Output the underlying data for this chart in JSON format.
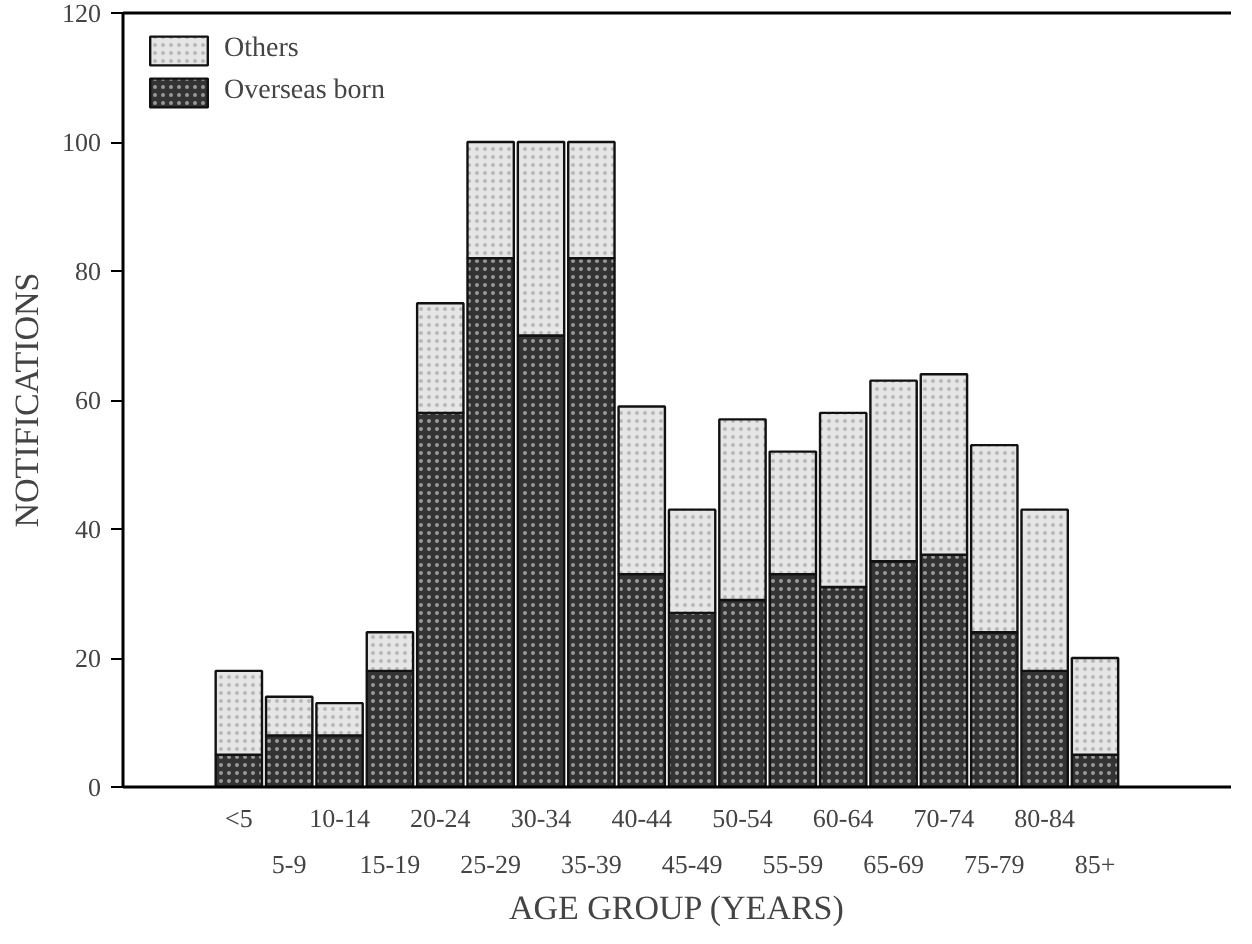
{
  "chart_data": {
    "type": "bar",
    "stacked": true,
    "xlabel": "AGE GROUP (YEARS)",
    "ylabel": "NOTIFICATIONS",
    "categories": [
      "<5",
      "5-9",
      "10-14",
      "15-19",
      "20-24",
      "25-29",
      "30-34",
      "35-39",
      "40-44",
      "45-49",
      "50-54",
      "55-59",
      "60-64",
      "65-69",
      "70-74",
      "75-79",
      "80-84",
      "85+"
    ],
    "series": [
      {
        "name": "Overseas born",
        "color": "#333333",
        "values": [
          5,
          8,
          8,
          18,
          58,
          82,
          70,
          82,
          33,
          27,
          29,
          33,
          31,
          35,
          36,
          24,
          18,
          5
        ]
      },
      {
        "name": "Others",
        "color": "#e6e6e6",
        "values": [
          13,
          6,
          5,
          6,
          17,
          18,
          30,
          18,
          26,
          16,
          28,
          19,
          27,
          28,
          28,
          29,
          25,
          15
        ]
      }
    ],
    "ylim": [
      0,
      120
    ],
    "yticks": [
      0,
      20,
      40,
      60,
      80,
      100,
      120
    ],
    "grid": false,
    "legend": "top left"
  }
}
